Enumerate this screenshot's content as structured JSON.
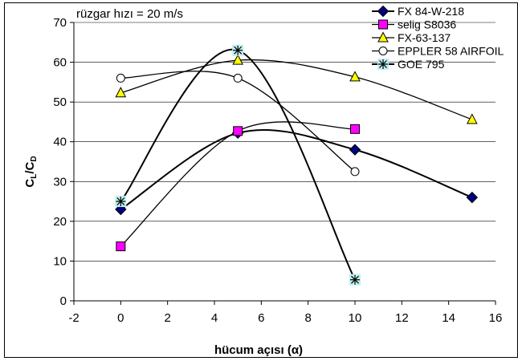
{
  "chart_data": {
    "type": "line",
    "annotation": "rüzgar hızı = 20 m/s",
    "xlabel": "hücum açısı (α)",
    "ylabel": "CL/CD",
    "ylabel_parts": {
      "c1": "C",
      "s1": "L",
      "slash": "/",
      "c2": "C",
      "s2": "D"
    },
    "xlim": [
      -2,
      16
    ],
    "ylim": [
      0,
      70
    ],
    "x_ticks": [
      -2,
      0,
      2,
      4,
      6,
      8,
      10,
      12,
      14,
      16
    ],
    "x_tick_labels": [
      "-2",
      "0",
      "2",
      "4",
      "6",
      "8",
      "10",
      "12",
      "14",
      "16"
    ],
    "y_ticks": [
      0,
      10,
      20,
      30,
      40,
      50,
      60,
      70
    ],
    "y_tick_labels": [
      "0",
      "10",
      "20",
      "30",
      "40",
      "50",
      "60",
      "70"
    ],
    "grid": "horizontal",
    "legend_position": "top-right",
    "series": [
      {
        "name": "FX  84-W-218",
        "x": [
          0,
          5,
          10,
          15
        ],
        "y": [
          23,
          42.2,
          38,
          26
        ],
        "marker": "diamond",
        "marker_fill": "#000080",
        "line_width": 2
      },
      {
        "name": "selig S8036",
        "x": [
          0,
          5,
          10
        ],
        "y": [
          13.7,
          42.7,
          43.2
        ],
        "marker": "square",
        "marker_fill": "#ff00ff",
        "line_width": 1.3
      },
      {
        "name": "FX-63-137",
        "x": [
          0,
          5,
          10,
          15
        ],
        "y": [
          52.3,
          60.5,
          56.3,
          45.6
        ],
        "marker": "triangle",
        "marker_fill": "#ffff00",
        "line_width": 1.3
      },
      {
        "name": "EPPLER 58 AIRFOIL",
        "x": [
          0,
          5,
          10
        ],
        "y": [
          56,
          56,
          32.5
        ],
        "marker": "circle",
        "marker_fill": "#ffffff",
        "line_width": 1.3
      },
      {
        "name": "GOE 795",
        "x": [
          0,
          5,
          10
        ],
        "y": [
          25,
          63,
          5.3
        ],
        "marker": "asterisk",
        "marker_fill": "#bfefef",
        "line_width": 2
      }
    ]
  }
}
